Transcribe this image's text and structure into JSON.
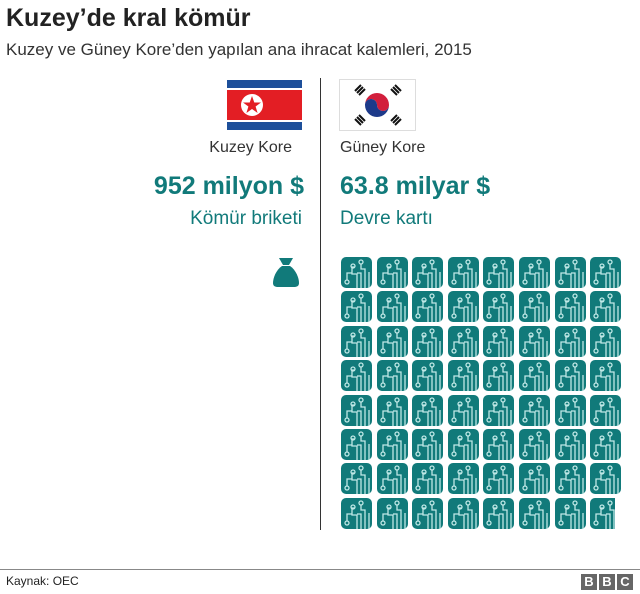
{
  "title": "Kuzey’de kral kömür",
  "subtitle": "Kuzey ve Güney Kore’den yapılan ana ihracat kalemleri, 2015",
  "colors": {
    "accent": "#117a7a",
    "nk_red": "#e31e24",
    "nk_blue": "#1d4f9a"
  },
  "chart_data": {
    "type": "pictogram",
    "series": [
      {
        "name": "Kuzey Kore",
        "value_label": "952 milyon $",
        "product": "Kömür briketi",
        "value_usd_billion": 0.952,
        "icon": "coal-sack-icon"
      },
      {
        "name": "Güney Kore",
        "value_label": "63.8 milyar $",
        "product": "Devre kartı",
        "value_usd_billion": 63.8,
        "icon": "circuit-board-icon"
      }
    ]
  },
  "footer": {
    "source": "Kaynak: OEC",
    "logo": "BBC"
  }
}
